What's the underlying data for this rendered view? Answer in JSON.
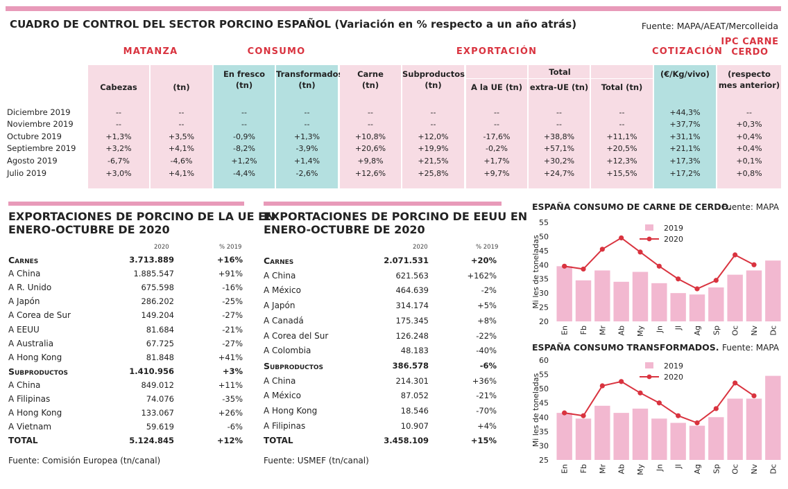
{
  "dashboard": {
    "title": "CUADRO DE CONTROL DEL SECTOR PORCINO ESPAÑOL (Variación en % respecto a un año atrás)",
    "source": "Fuente: MAPA/AEAT/Mercolleida",
    "groups": {
      "matanza": "MATANZA",
      "consumo": "CONSUMO",
      "exportacion": "EXPORTACIÓN",
      "cotizacion": "COTIZACIÓN",
      "ipc_line1": "IPC CARNE",
      "ipc_line2": "CERDO"
    },
    "export_total_header": "Total",
    "columns": [
      {
        "line1": "",
        "line2": "Cabezas"
      },
      {
        "line1": "",
        "line2": "(tn)"
      },
      {
        "line1": "En fresco",
        "line2": "(tn)"
      },
      {
        "line1": "Transformados",
        "line2": "(tn)"
      },
      {
        "line1": "Carne",
        "line2": "(tn)"
      },
      {
        "line1": "Subproductos",
        "line2": "(tn)"
      },
      {
        "line1": "",
        "line2": "A la UE (tn)"
      },
      {
        "line1": "",
        "line2": "extra-UE (tn)"
      },
      {
        "line1": "",
        "line2": "Total (tn)"
      },
      {
        "line1": "(€/Kg/vivo)",
        "line2": ""
      },
      {
        "line1": "(respecto",
        "line2": "mes anterior)"
      }
    ],
    "rows": [
      {
        "label": "Diciembre 2019",
        "values": [
          "--",
          "--",
          "--",
          "--",
          "--",
          "--",
          "--",
          "--",
          "--",
          "+44,3%",
          "--"
        ]
      },
      {
        "label": "Noviembre 2019",
        "values": [
          "--",
          "--",
          "--",
          "--",
          "--",
          "--",
          "--",
          "--",
          "--",
          "+37,7%",
          "+0,3%"
        ]
      },
      {
        "label": "Octubre 2019",
        "values": [
          "+1,3%",
          "+3,5%",
          "-0,9%",
          "+1,3%",
          "+10,8%",
          "+12,0%",
          "-17,6%",
          "+38,8%",
          "+11,1%",
          "+31,1%",
          "+0,4%"
        ]
      },
      {
        "label": "Septiembre 2019",
        "values": [
          "+3,2%",
          "+4,1%",
          "-8,2%",
          "-3,9%",
          "+20,6%",
          "+19,9%",
          "-0,2%",
          "+57,1%",
          "+20,5%",
          "+21,1%",
          "+0,4%"
        ]
      },
      {
        "label": "Agosto 2019",
        "values": [
          "-6,7%",
          "-4,6%",
          "+1,2%",
          "+1,4%",
          "+9,8%",
          "+21,5%",
          "+1,7%",
          "+30,2%",
          "+12,3%",
          "+17,3%",
          "+0,1%"
        ]
      },
      {
        "label": "Julio 2019",
        "values": [
          "+3,0%",
          "+4,1%",
          "-4,4%",
          "-2,6%",
          "+12,6%",
          "+25,8%",
          "+9,7%",
          "+24,7%",
          "+15,5%",
          "+17,2%",
          "+0,8%"
        ]
      }
    ]
  },
  "ue_exports": {
    "title_line1": "EXPORTACIONES DE PORCINO DE LA UE EN",
    "title_line2": "ENERO-OCTUBRE DE 2020",
    "col_2020": "2020",
    "col_pct": "% 2019",
    "rows": [
      {
        "label": "Carnes",
        "value": "3.713.889",
        "pct": "+16%",
        "bold": true
      },
      {
        "label": "A China",
        "value": "1.885.547",
        "pct": "+91%",
        "bold": false
      },
      {
        "label": "A R. Unido",
        "value": "675.598",
        "pct": "-16%",
        "bold": false
      },
      {
        "label": "A Japón",
        "value": "286.202",
        "pct": "-25%",
        "bold": false
      },
      {
        "label": "A Corea de Sur",
        "value": "149.204",
        "pct": "-27%",
        "bold": false
      },
      {
        "label": "A EEUU",
        "value": "81.684",
        "pct": "-21%",
        "bold": false
      },
      {
        "label": "A Australia",
        "value": "67.725",
        "pct": "-27%",
        "bold": false
      },
      {
        "label": "A Hong Kong",
        "value": "81.848",
        "pct": "+41%",
        "bold": false
      },
      {
        "label": "Subproductos",
        "value": "1.410.956",
        "pct": "+3%",
        "bold": true
      },
      {
        "label": "A China",
        "value": "849.012",
        "pct": "+11%",
        "bold": false
      },
      {
        "label": "A Filipinas",
        "value": "74.076",
        "pct": "-35%",
        "bold": false
      },
      {
        "label": "A Hong Kong",
        "value": "133.067",
        "pct": "+26%",
        "bold": false
      },
      {
        "label": "A Vietnam",
        "value": "59.619",
        "pct": "-6%",
        "bold": false
      },
      {
        "label": "TOTAL",
        "value": "5.124.845",
        "pct": "+12%",
        "bold": true
      }
    ],
    "footnote": "Fuente: Comisión Europea (tn/canal)"
  },
  "us_exports": {
    "title_line1": "EXPORTACIONES DE PORCINO DE EEUU EN",
    "title_line2": "ENERO-OCTUBRE DE 2020",
    "col_2020": "2020",
    "col_pct": "% 2019",
    "rows": [
      {
        "label": "Carnes",
        "value": "2.071.531",
        "pct": "+20%",
        "bold": true
      },
      {
        "label": "A China",
        "value": "621.563",
        "pct": "+162%",
        "bold": false
      },
      {
        "label": "A México",
        "value": "464.639",
        "pct": "-2%",
        "bold": false
      },
      {
        "label": "A Japón",
        "value": "314.174",
        "pct": "+5%",
        "bold": false
      },
      {
        "label": "A Canadá",
        "value": "175.345",
        "pct": "+8%",
        "bold": false
      },
      {
        "label": "A Corea del Sur",
        "value": "126.248",
        "pct": "-22%",
        "bold": false
      },
      {
        "label": "A Colombia",
        "value": "48.183",
        "pct": "-40%",
        "bold": false
      },
      {
        "label": "Subproductos",
        "value": "386.578",
        "pct": "-6%",
        "bold": true
      },
      {
        "label": "A China",
        "value": "214.301",
        "pct": "+36%",
        "bold": false
      },
      {
        "label": "A México",
        "value": "87.052",
        "pct": "-21%",
        "bold": false
      },
      {
        "label": "A Hong Kong",
        "value": "18.546",
        "pct": "-70%",
        "bold": false
      },
      {
        "label": "A Filipinas",
        "value": "10.907",
        "pct": "+4%",
        "bold": false
      },
      {
        "label": "TOTAL",
        "value": "3.458.109",
        "pct": "+15%",
        "bold": true
      }
    ],
    "footnote": "Fuente: USMEF (tn/canal)"
  },
  "chart_data": [
    {
      "type": "bar",
      "title": "ESPAÑA CONSUMO DE CARNE DE CERDO.",
      "source": "Fuente: MAPA",
      "ylabel": "Mi les de toneladas",
      "xlabel": "",
      "ylim": [
        20,
        55
      ],
      "yticks": [
        20,
        25,
        30,
        35,
        40,
        45,
        50,
        55
      ],
      "categories": [
        "En",
        "Fb",
        "Mr",
        "Ab",
        "My",
        "Jn",
        "Jl",
        "Ag",
        "Sp",
        "Oc",
        "Nv",
        "Dc"
      ],
      "series": [
        {
          "name": "2019",
          "kind": "bar",
          "color": "#f2b8d0",
          "values": [
            39.5,
            34.5,
            38,
            34,
            37.5,
            33.5,
            30,
            29.5,
            32,
            36.5,
            38,
            41.5
          ]
        },
        {
          "name": "2020",
          "kind": "line",
          "color": "#d9333f",
          "values": [
            39.5,
            38.5,
            45.5,
            49.5,
            44.5,
            39.5,
            35,
            31.5,
            34.5,
            43.5,
            40,
            null
          ]
        }
      ],
      "legend": "top-center",
      "grid": false
    },
    {
      "type": "bar",
      "title": "ESPAÑA CONSUMO TRANSFORMADOS.",
      "source": "Fuente: MAPA",
      "ylabel": "Mi les de toneladas",
      "xlabel": "",
      "ylim": [
        25,
        60
      ],
      "yticks": [
        25,
        30,
        35,
        40,
        45,
        50,
        55,
        60
      ],
      "categories": [
        "En",
        "Fb",
        "Mr",
        "Ab",
        "My",
        "Jn",
        "Jl",
        "Ag",
        "Sp",
        "Oc",
        "Nv",
        "Dc"
      ],
      "series": [
        {
          "name": "2019",
          "kind": "bar",
          "color": "#f2b8d0",
          "values": [
            41.5,
            39.5,
            44,
            41.5,
            43,
            39.5,
            38,
            37,
            40,
            46.5,
            46.5,
            54.5
          ]
        },
        {
          "name": "2020",
          "kind": "line",
          "color": "#d9333f",
          "values": [
            41.5,
            40.5,
            51,
            52.5,
            48.5,
            45,
            40.5,
            38,
            43,
            52,
            47.5,
            null
          ]
        }
      ],
      "legend": "top-center",
      "grid": false
    }
  ]
}
